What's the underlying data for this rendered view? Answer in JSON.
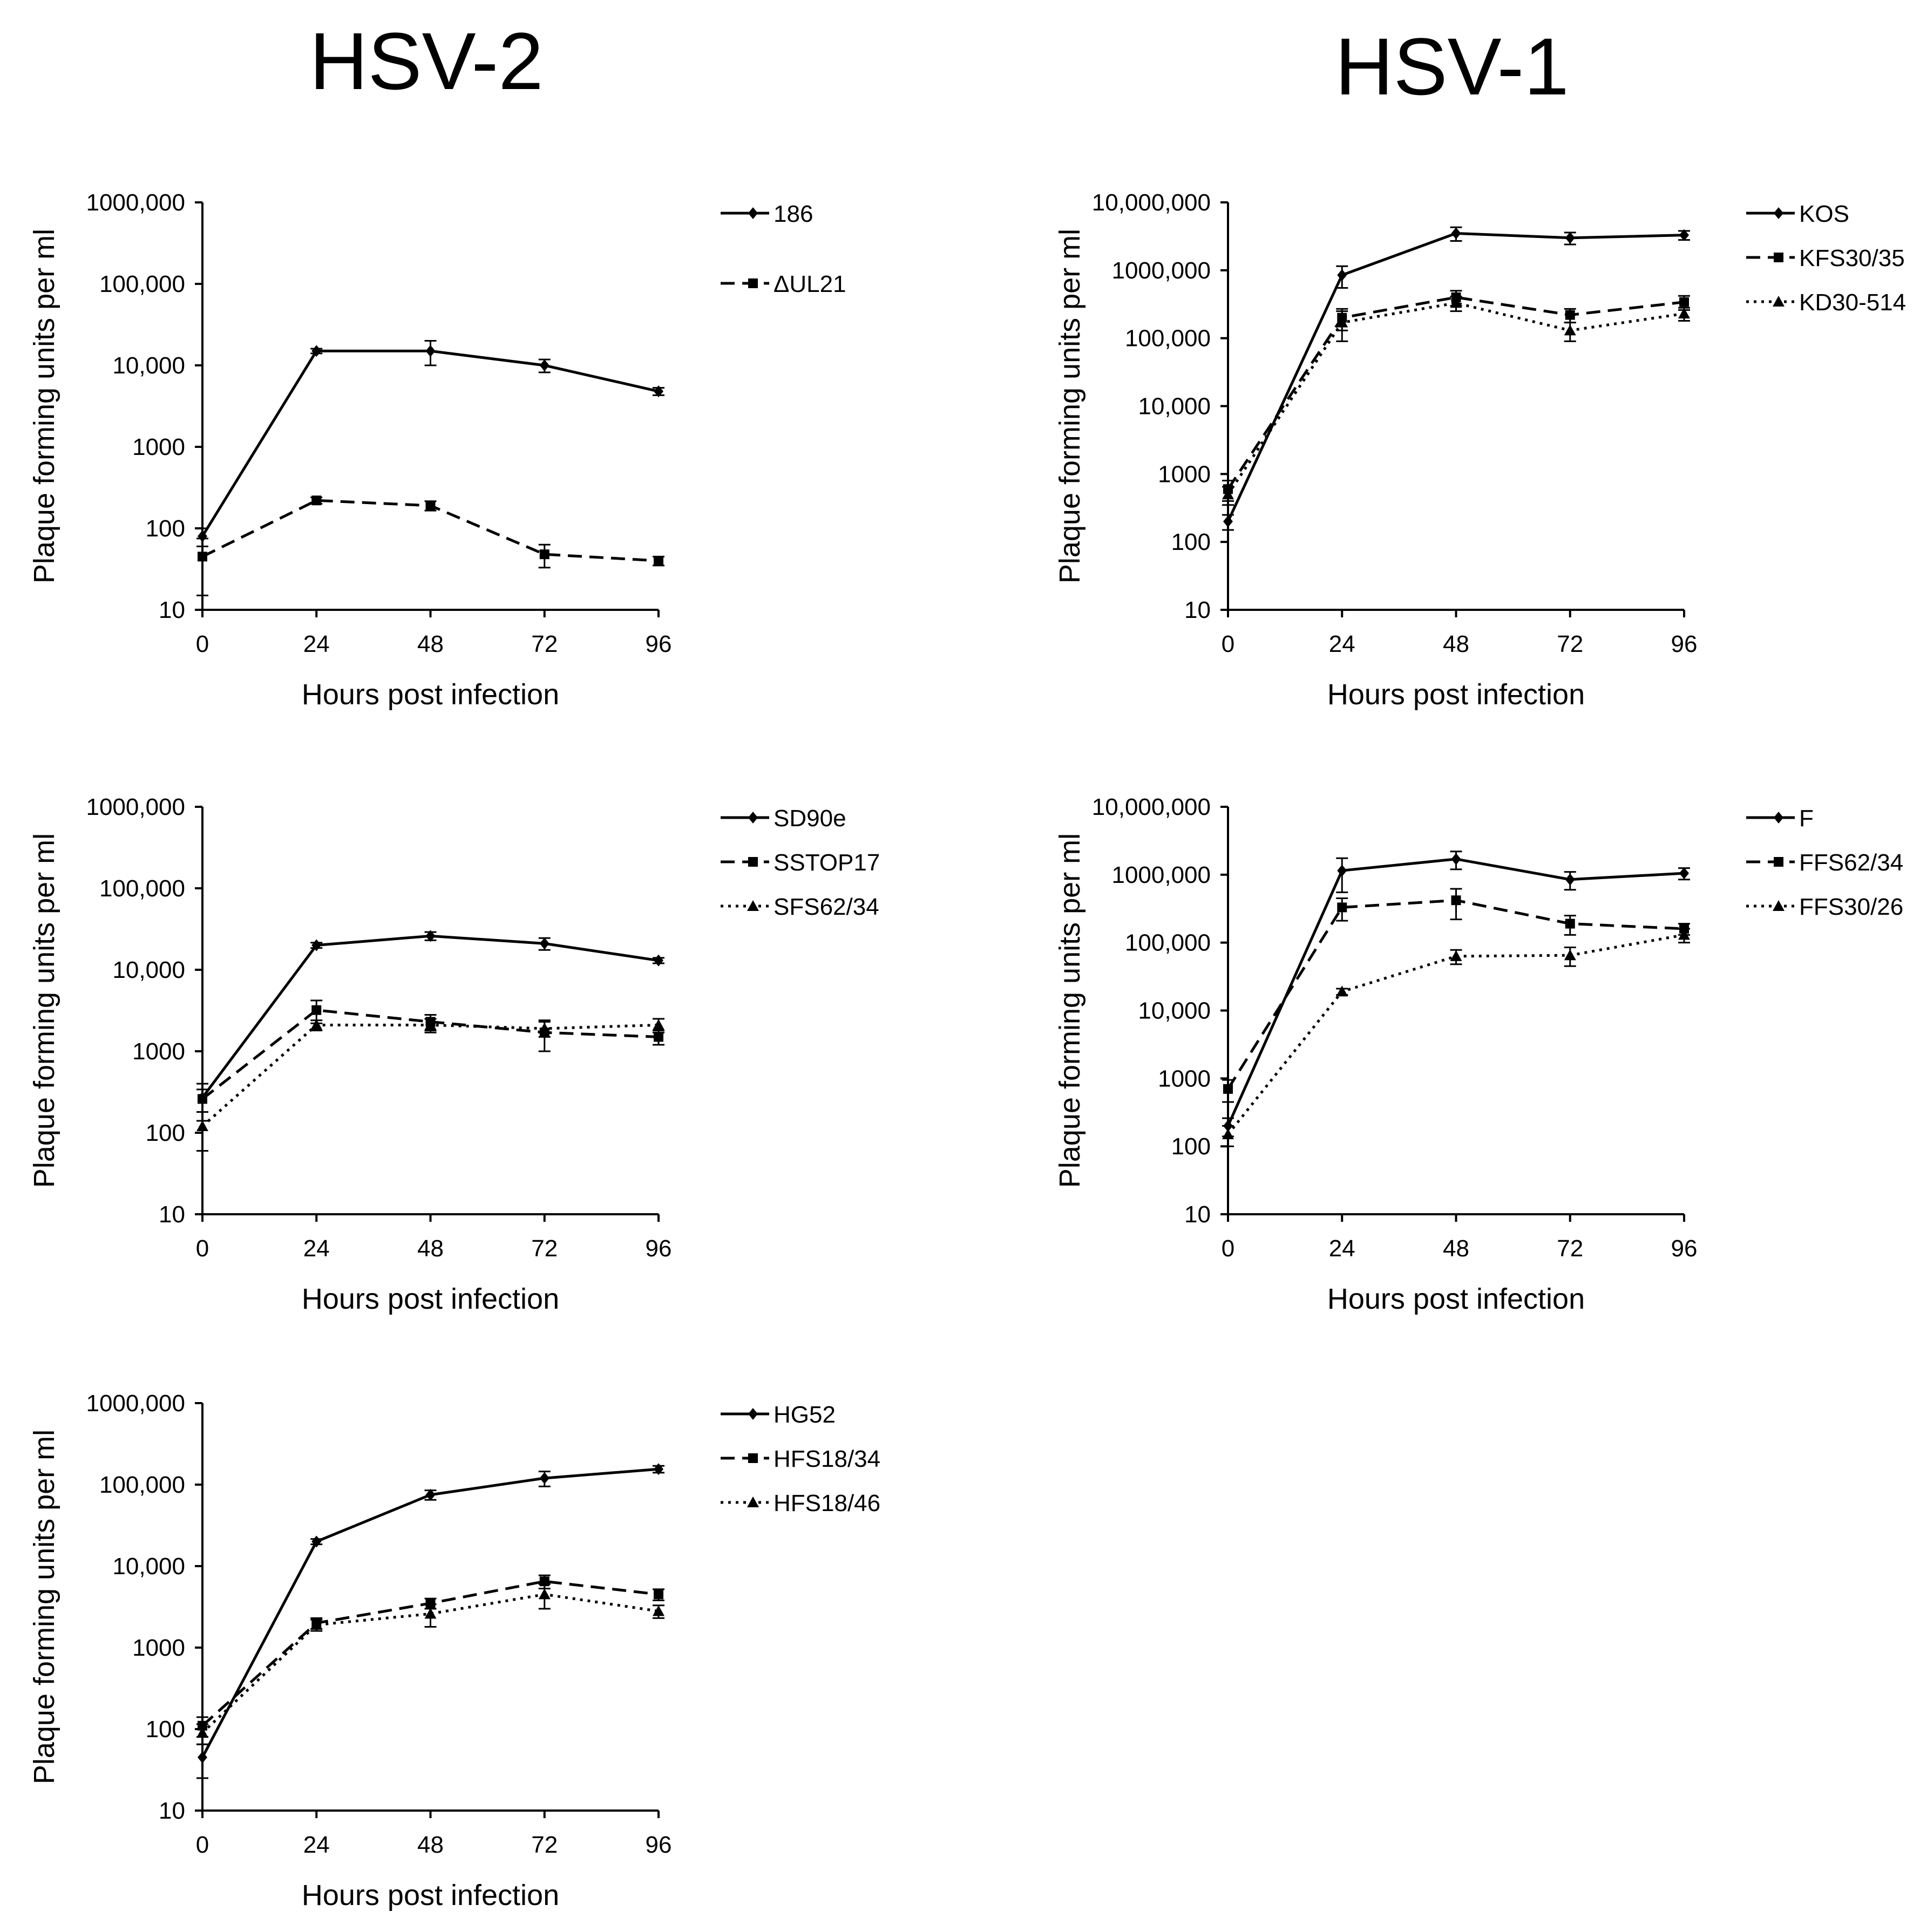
{
  "figure": {
    "column_titles": [
      "HSV-2",
      "HSV-1"
    ]
  },
  "chart_data": [
    {
      "type": "line",
      "column": "HSV-2",
      "x": [
        0,
        24,
        48,
        72,
        96
      ],
      "xticks": [
        "0",
        "24",
        "48",
        "72",
        "96"
      ],
      "xlabel": "Hours post infection",
      "ylabel": "Plaque forming units per ml",
      "yscale": "log",
      "ylim": [
        10,
        1000000
      ],
      "yticks": [
        10,
        100,
        1000,
        10000,
        100000,
        1000000
      ],
      "yticklabels": [
        "10",
        "100",
        "1000",
        "10,000",
        "100,000",
        "1000,000"
      ],
      "series": [
        {
          "name": "186",
          "style": "solid",
          "marker": "diamond",
          "values": [
            80,
            15000,
            15000,
            10000,
            4800
          ],
          "errors": [
            20,
            1000,
            5000,
            1800,
            500
          ]
        },
        {
          "name": "ΔUL21",
          "style": "dashed",
          "marker": "square",
          "values": [
            45,
            220,
            190,
            48,
            40
          ],
          "errors": [
            30,
            20,
            25,
            15,
            5
          ]
        }
      ]
    },
    {
      "type": "line",
      "column": "HSV-1",
      "x": [
        0,
        24,
        48,
        72,
        96
      ],
      "xticks": [
        "0",
        "24",
        "48",
        "72",
        "96"
      ],
      "xlabel": "Hours post infection",
      "ylabel": "Plaque forming units per ml",
      "yscale": "log",
      "ylim": [
        10,
        10000000
      ],
      "yticks": [
        10,
        100,
        1000,
        10000,
        100000,
        1000000,
        10000000
      ],
      "yticklabels": [
        "10",
        "100",
        "1000",
        "10,000",
        "100,000",
        "1000,000",
        "10,000,000"
      ],
      "series": [
        {
          "name": "KOS",
          "style": "solid",
          "marker": "diamond",
          "values": [
            200,
            850000,
            3500000,
            3000000,
            3300000
          ],
          "errors": [
            50,
            300000,
            800000,
            600000,
            500000
          ]
        },
        {
          "name": "KFS30/35",
          "style": "dashed",
          "marker": "square",
          "values": [
            600,
            200000,
            400000,
            220000,
            340000
          ],
          "errors": [
            200,
            70000,
            100000,
            50000,
            80000
          ]
        },
        {
          "name": "KD30-514",
          "style": "dotted",
          "marker": "triangle",
          "values": [
            500,
            170000,
            330000,
            130000,
            230000
          ],
          "errors": [
            150,
            80000,
            80000,
            40000,
            50000
          ]
        }
      ]
    },
    {
      "type": "line",
      "column": "HSV-2",
      "x": [
        0,
        24,
        48,
        72,
        96
      ],
      "xticks": [
        "0",
        "24",
        "48",
        "72",
        "96"
      ],
      "xlabel": "Hours post infection",
      "ylabel": "Plaque forming units per ml",
      "yscale": "log",
      "ylim": [
        10,
        1000000
      ],
      "yticks": [
        10,
        100,
        1000,
        10000,
        100000,
        1000000
      ],
      "yticklabels": [
        "10",
        "100",
        "1000",
        "10,000",
        "100,000",
        "1000,000"
      ],
      "series": [
        {
          "name": "SD90e",
          "style": "solid",
          "marker": "diamond",
          "values": [
            270,
            20000,
            26000,
            21000,
            13000
          ],
          "errors": [
            130,
            1500,
            3000,
            3500,
            1000
          ]
        },
        {
          "name": "SSTOP17",
          "style": "dashed",
          "marker": "square",
          "values": [
            260,
            3200,
            2300,
            1700,
            1500
          ],
          "errors": [
            80,
            1000,
            500,
            700,
            300
          ]
        },
        {
          "name": "SFS62/34",
          "style": "dotted",
          "marker": "triangle",
          "values": [
            120,
            2100,
            2100,
            1900,
            2100
          ],
          "errors": [
            60,
            300,
            400,
            400,
            400
          ]
        }
      ]
    },
    {
      "type": "line",
      "column": "HSV-1",
      "x": [
        0,
        24,
        48,
        72,
        96
      ],
      "xticks": [
        "0",
        "24",
        "48",
        "72",
        "96"
      ],
      "xlabel": "Hours post infection",
      "ylabel": "Plaque forming units per ml",
      "yscale": "log",
      "ylim": [
        10,
        10000000
      ],
      "yticks": [
        10,
        100,
        1000,
        10000,
        100000,
        1000000,
        10000000
      ],
      "yticklabels": [
        "10",
        "100",
        "1000",
        "10,000",
        "100,000",
        "1000,000",
        "10,000,000"
      ],
      "series": [
        {
          "name": "F",
          "style": "solid",
          "marker": "diamond",
          "values": [
            200,
            1150000,
            1700000,
            850000,
            1050000
          ],
          "errors": [
            60,
            600000,
            500000,
            250000,
            200000
          ]
        },
        {
          "name": "FFS62/34",
          "style": "dashed",
          "marker": "square",
          "values": [
            700,
            330000,
            420000,
            190000,
            160000
          ],
          "errors": [
            250,
            120000,
            200000,
            60000,
            30000
          ]
        },
        {
          "name": "FFS30/26",
          "style": "dotted",
          "marker": "triangle",
          "values": [
            150,
            19000,
            63000,
            65000,
            130000
          ],
          "errors": [
            50,
            2000,
            15000,
            20000,
            30000
          ]
        }
      ]
    },
    {
      "type": "line",
      "column": "HSV-2",
      "x": [
        0,
        24,
        48,
        72,
        96
      ],
      "xticks": [
        "0",
        "24",
        "48",
        "72",
        "96"
      ],
      "xlabel": "Hours post infection",
      "ylabel": "Plaque forming units per ml",
      "yscale": "log",
      "ylim": [
        10,
        1000000
      ],
      "yticks": [
        10,
        100,
        1000,
        10000,
        100000,
        1000000
      ],
      "yticklabels": [
        "10",
        "100",
        "1000",
        "10,000",
        "100,000",
        "1000,000"
      ],
      "series": [
        {
          "name": "HG52",
          "style": "solid",
          "marker": "diamond",
          "values": [
            45,
            20000,
            75000,
            120000,
            155000
          ],
          "errors": [
            20,
            1500,
            10000,
            25000,
            15000
          ]
        },
        {
          "name": "HFS18/34",
          "style": "dashed",
          "marker": "square",
          "values": [
            110,
            2000,
            3500,
            6500,
            4500
          ],
          "errors": [
            30,
            300,
            500,
            1200,
            700
          ]
        },
        {
          "name": "HFS18/46",
          "style": "dotted",
          "marker": "triangle",
          "values": [
            90,
            1900,
            2600,
            4500,
            2800
          ],
          "errors": [
            25,
            300,
            800,
            1500,
            500
          ]
        }
      ]
    }
  ]
}
